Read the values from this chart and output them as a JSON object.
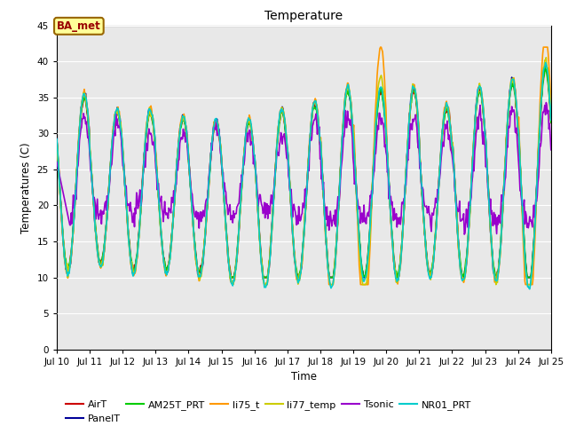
{
  "title": "Temperature",
  "xlabel": "Time",
  "ylabel": "Temperatures (C)",
  "xlim": [
    0,
    15
  ],
  "ylim": [
    0,
    45
  ],
  "yticks": [
    0,
    5,
    10,
    15,
    20,
    25,
    30,
    35,
    40,
    45
  ],
  "xtick_labels": [
    "Jul 10",
    "Jul 11",
    "Jul 12",
    "Jul 13",
    "Jul 14",
    "Jul 15",
    "Jul 16",
    "Jul 17",
    "Jul 18",
    "Jul 19",
    "Jul 20",
    "Jul 21",
    "Jul 22",
    "Jul 23",
    "Jul 24",
    "Jul 25"
  ],
  "series": {
    "AirT": {
      "color": "#cc0000",
      "lw": 1.2
    },
    "PanelT": {
      "color": "#000099",
      "lw": 1.2
    },
    "AM25T_PRT": {
      "color": "#00cc00",
      "lw": 1.2
    },
    "li75_t": {
      "color": "#ff9900",
      "lw": 1.2
    },
    "li77_temp": {
      "color": "#cccc00",
      "lw": 1.2
    },
    "Tsonic": {
      "color": "#9900cc",
      "lw": 1.2
    },
    "NR01_PRT": {
      "color": "#00cccc",
      "lw": 1.2
    }
  },
  "legend_entries": [
    "AirT",
    "PanelT",
    "AM25T_PRT",
    "li75_t",
    "li77_temp",
    "Tsonic",
    "NR01_PRT"
  ],
  "legend_colors": [
    "#cc0000",
    "#000099",
    "#00cc00",
    "#ff9900",
    "#cccc00",
    "#9900cc",
    "#00cccc"
  ],
  "annotation_text": "BA_met",
  "bg_color": "#ffffff",
  "plot_bg_color": "#e8e8e8",
  "grid_color": "#ffffff"
}
